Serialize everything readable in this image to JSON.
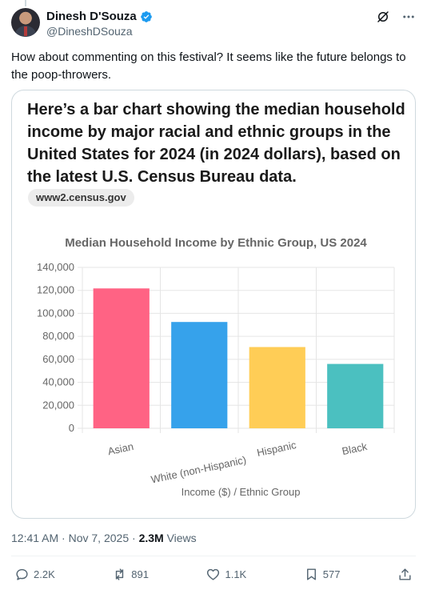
{
  "author": {
    "display_name": "Dinesh D'Souza",
    "handle": "@DineshDSouza"
  },
  "tweet": {
    "text": "How about commenting on this festival? It seems like the future belongs to the poop-throwers."
  },
  "card": {
    "heading": "Here’s a bar chart showing the median household income by major racial and ethnic groups in the United States for 2024 (in 2024 dollars), based on the latest U.S. Census Bureau data.",
    "source_pill": "www2.census.gov"
  },
  "chart_data": {
    "type": "bar",
    "title": "Median Household Income by Ethnic Group, US 2024",
    "xlabel": "Income ($) / Ethnic Group",
    "ylabel": "",
    "categories": [
      "Asian",
      "White (non-Hispanic)",
      "Hispanic",
      "Black"
    ],
    "values": [
      121700,
      92500,
      70700,
      56000
    ],
    "colors": [
      "#ff6384",
      "#36a2eb",
      "#ffcd56",
      "#4bc0c0"
    ],
    "ylim": [
      0,
      140000
    ],
    "yticks": [
      0,
      20000,
      40000,
      60000,
      80000,
      100000,
      120000,
      140000
    ],
    "ytick_labels": [
      "0",
      "20,000",
      "40,000",
      "60,000",
      "80,000",
      "100,000",
      "120,000",
      "140,000"
    ],
    "grid": true,
    "legend": "none"
  },
  "meta": {
    "time": "12:41 AM",
    "date": "Nov 7, 2025",
    "views_count": "2.3M",
    "views_label": "Views"
  },
  "actions": {
    "replies": "2.2K",
    "reposts": "891",
    "likes": "1.1K",
    "bookmarks": "577"
  },
  "icons": {
    "verified": "verified-badge-icon",
    "grok": "grok-icon",
    "more": "more-icon",
    "reply": "reply-icon",
    "repost": "repost-icon",
    "like": "like-icon",
    "bookmark": "bookmark-icon",
    "share": "share-icon"
  },
  "colors": {
    "verified_blue": "#1d9bf0",
    "muted_text": "#536471"
  }
}
